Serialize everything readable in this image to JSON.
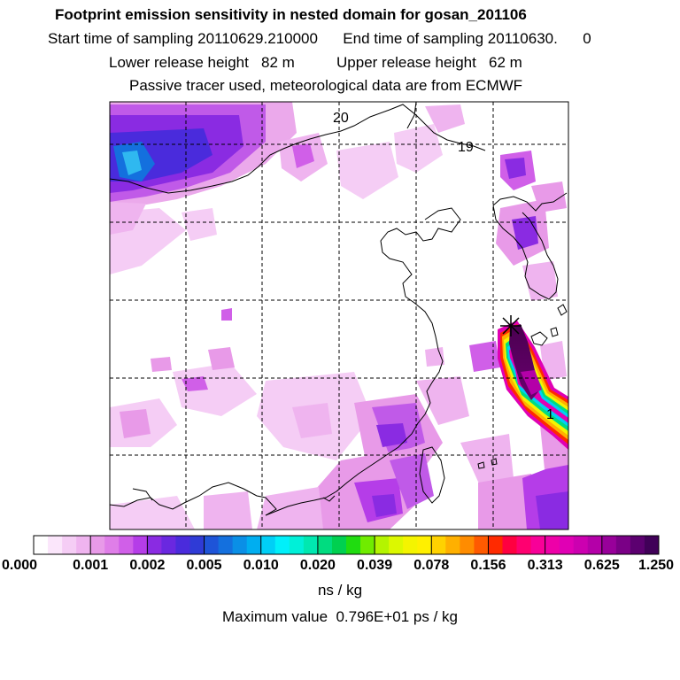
{
  "titles": {
    "line1": "Footprint emission sensitivity in nested domain for gosan_201106",
    "line2": "Start time of sampling 20110629.210000      End time of sampling 20110630.      0",
    "line3": "Lower release height   82 m          Upper release height   62 m",
    "line4": "Passive tracer used, meteorological data are from ECMWF"
  },
  "map_labels": {
    "label_20": "20",
    "label_19": "19",
    "label_1": "1"
  },
  "colorbar": {
    "tick_labels": [
      "0.000",
      "0.001",
      "0.002",
      "0.005",
      "0.010",
      "0.020",
      "0.039",
      "0.078",
      "0.156",
      "0.313",
      "0.625",
      "1.250"
    ],
    "colors": [
      [
        "#ffffff",
        "#fbe6fb",
        "#f5cdf5",
        "#efb4ef"
      ],
      [
        "#e89ae8",
        "#df7ee8",
        "#d05fe8",
        "#b53de8"
      ],
      [
        "#8a2be2",
        "#6a28e0",
        "#4a2bdc",
        "#2f3bd6"
      ],
      [
        "#1e54d8",
        "#1470de",
        "#0a8fe6",
        "#00aef0"
      ],
      [
        "#00cff6",
        "#00f0fa",
        "#00f0d8",
        "#00e8b0"
      ],
      [
        "#00dc80",
        "#00d050",
        "#20dc10",
        "#70ec00"
      ],
      [
        "#b4f400",
        "#dcf800",
        "#f4f400",
        "#fff000"
      ],
      [
        "#ffd200",
        "#ffb000",
        "#ff8c00",
        "#ff5a00"
      ],
      [
        "#ff2a00",
        "#ff0040",
        "#ff0070",
        "#f80098"
      ],
      [
        "#ee00a8",
        "#e000b4",
        "#cc00b0",
        "#b400a8"
      ],
      [
        "#98009a",
        "#7a0086",
        "#5c0070",
        "#400058"
      ]
    ],
    "unit": "ns / kg"
  },
  "max_value": "Maximum value  0.796E+01 ps / kg"
}
